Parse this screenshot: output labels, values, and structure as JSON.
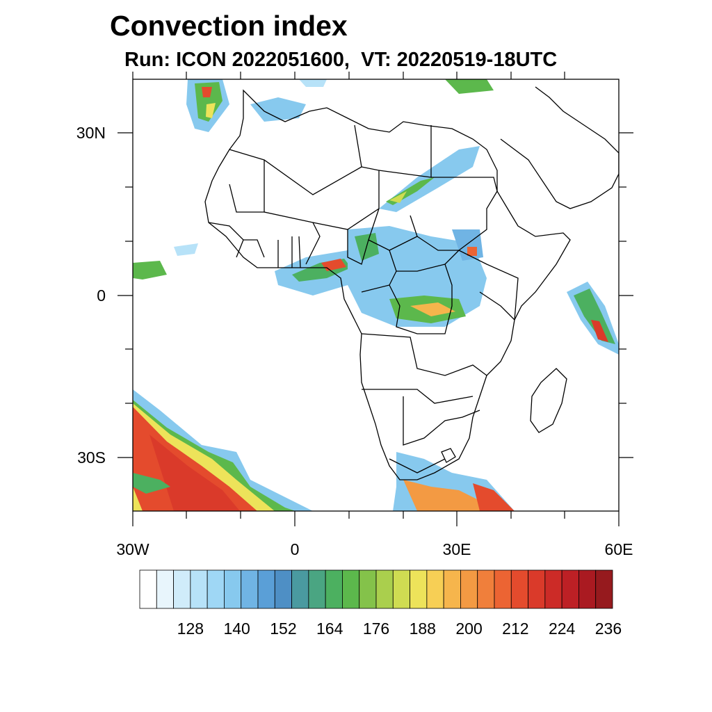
{
  "title": "Convection index",
  "subtitle": "Run: ICON 2022051600,  VT: 20220519-18UTC",
  "axes": {
    "x_ticks": [
      "30W",
      "0",
      "30E",
      "60E"
    ],
    "y_ticks": [
      "30N",
      "0",
      "30S"
    ]
  },
  "colorbar": {
    "labels": [
      "128",
      "140",
      "152",
      "164",
      "176",
      "188",
      "200",
      "212",
      "224",
      "236"
    ],
    "colors": [
      "#ffffff",
      "#e8f5fc",
      "#d0ecfa",
      "#b7e2f8",
      "#9fd7f5",
      "#87c9ee",
      "#70b4e4",
      "#5a9fd7",
      "#4e8fc5",
      "#4a9aa0",
      "#4aa582",
      "#4cb060",
      "#5cb84c",
      "#84c24a",
      "#aacf4d",
      "#cfdc52",
      "#ede35a",
      "#f7cf55",
      "#f6b54c",
      "#f39a43",
      "#f07f3b",
      "#ec6433",
      "#e44b2d",
      "#da3a2a",
      "#cc2b27",
      "#bd2025",
      "#aa1a21",
      "#961a1e"
    ]
  },
  "map": {
    "lon_range": [
      -30,
      60
    ],
    "lat_range": [
      -40,
      40
    ],
    "region": "Africa"
  }
}
